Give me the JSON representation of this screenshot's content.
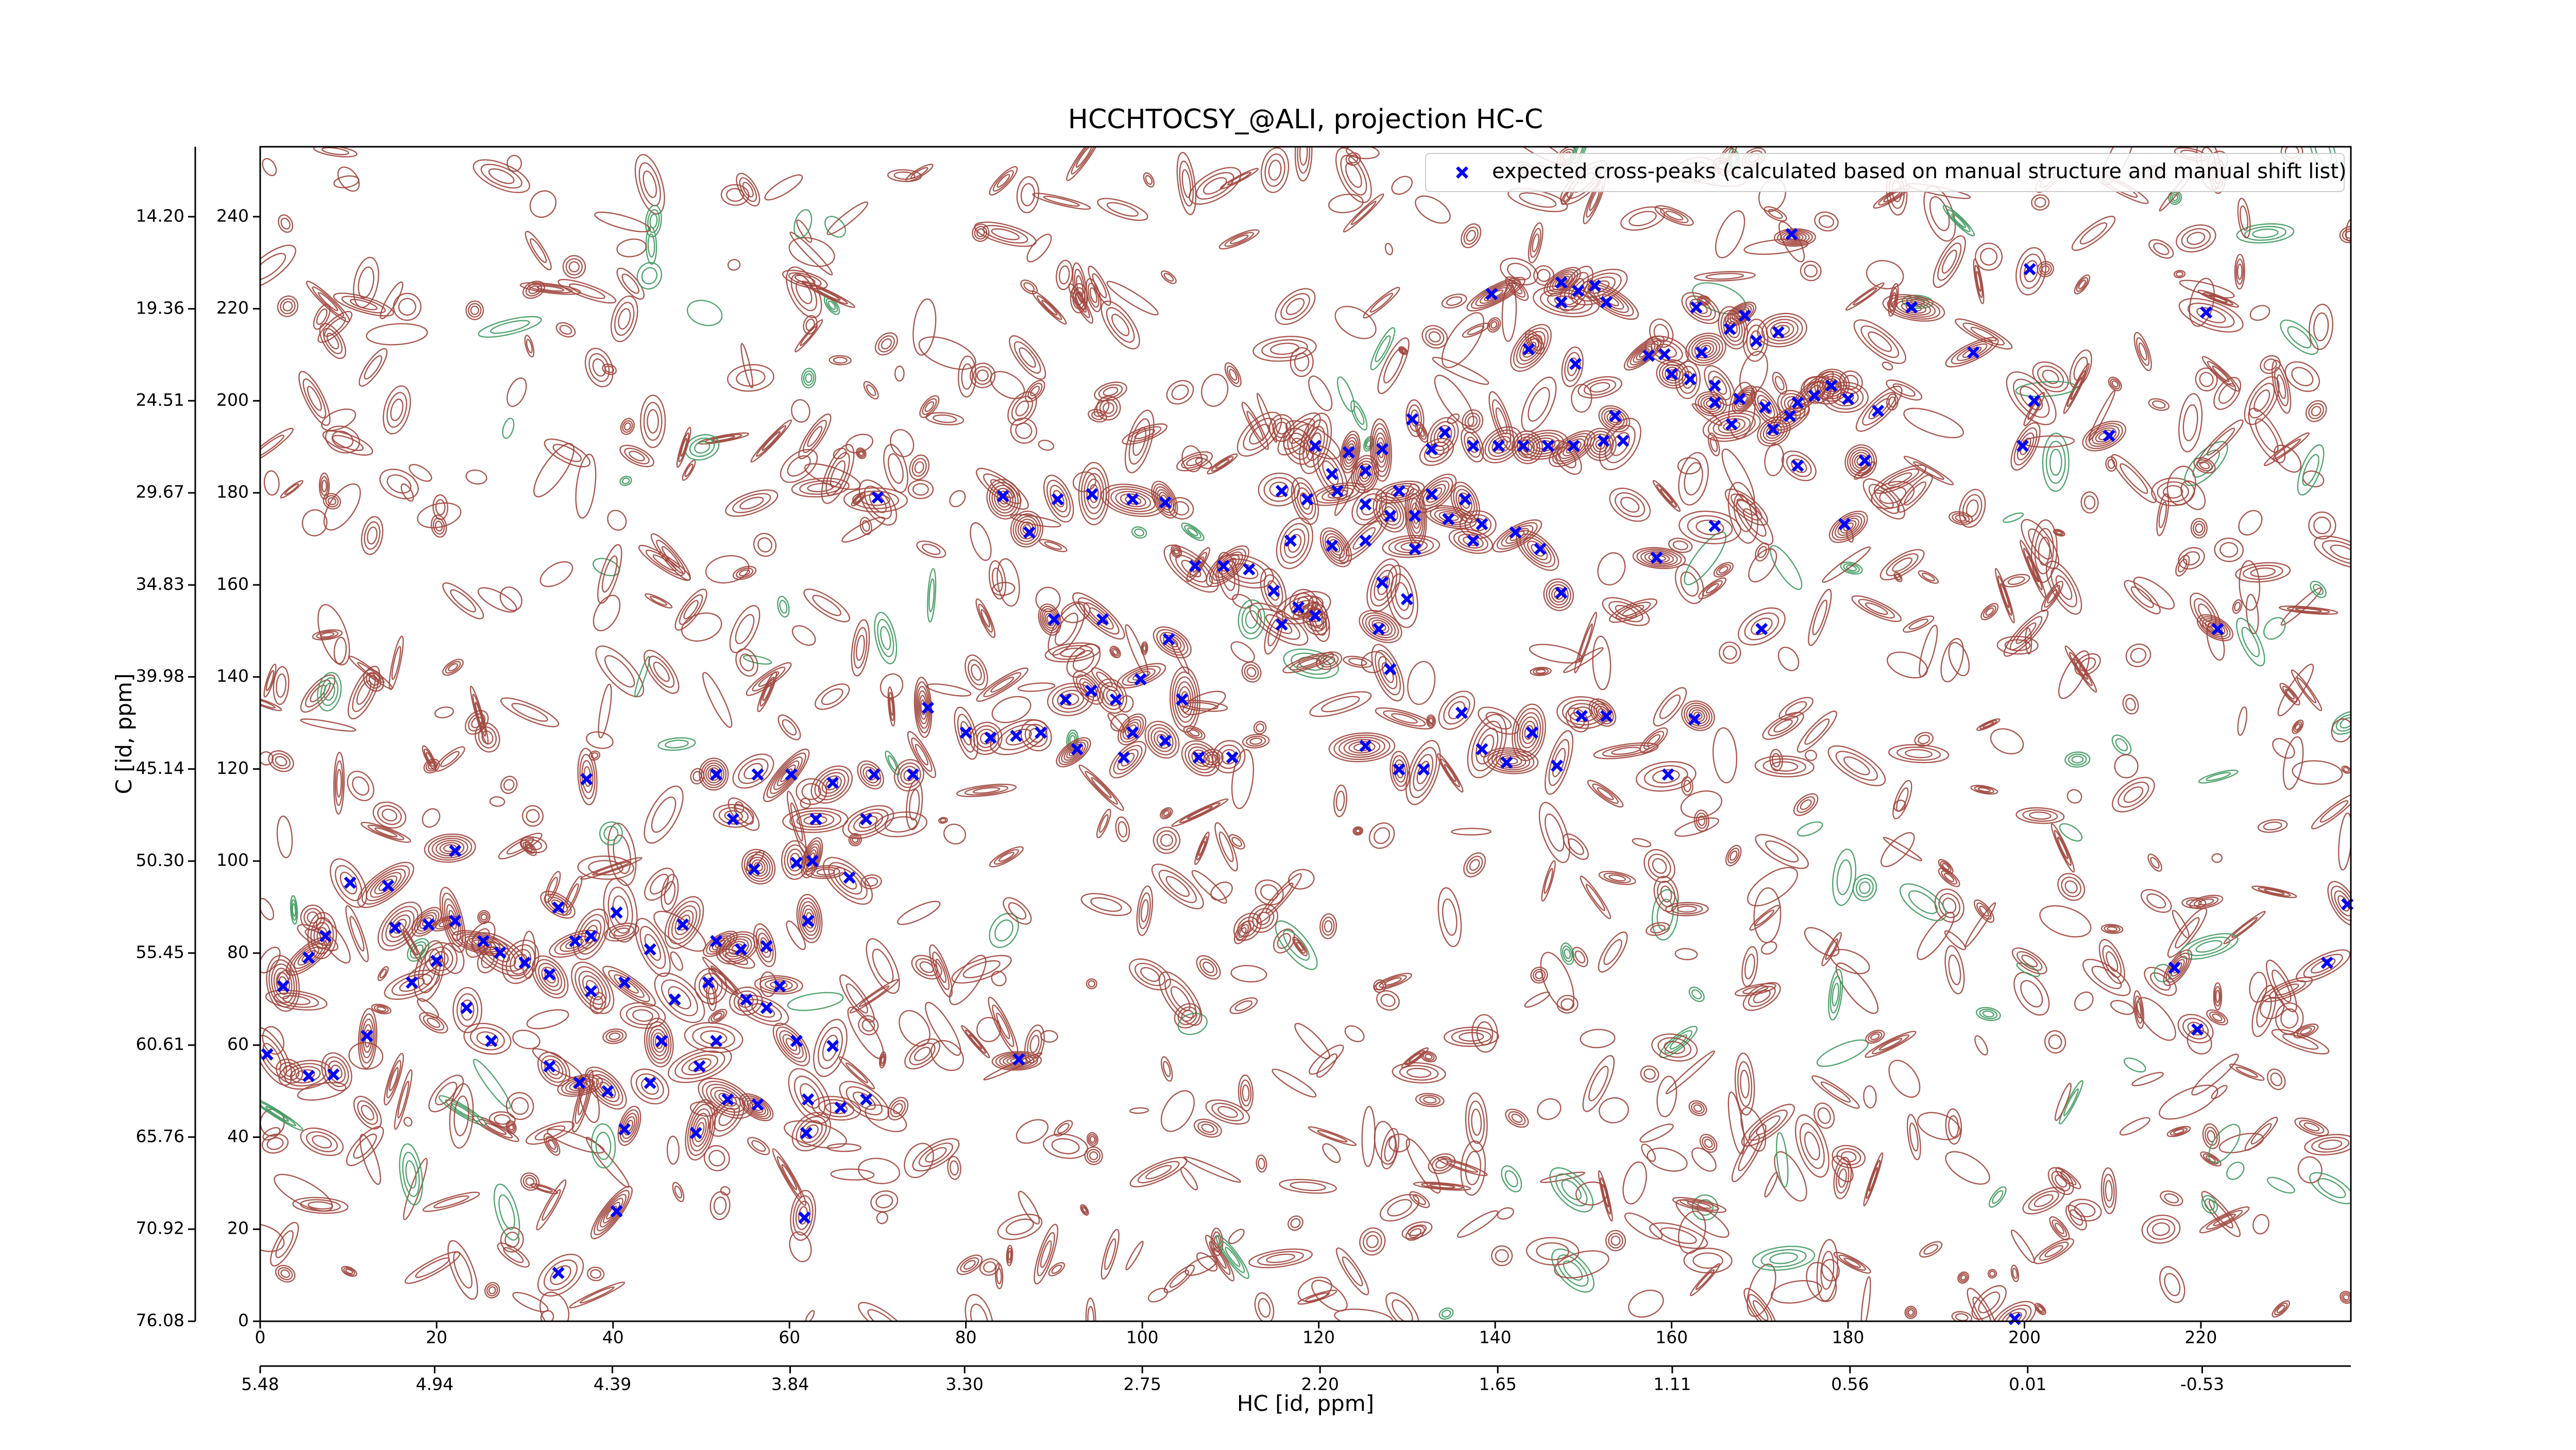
{
  "chart_data": {
    "type": "scatter",
    "title": "HCCHTOCSY_@ALI, projection HC-C",
    "x_label": "HC [id, ppm]",
    "y_label": "C [id, ppm]",
    "xlim": [
      0,
      237
    ],
    "ylim": [
      0,
      255.2
    ],
    "xticks": [
      0,
      20,
      40,
      60,
      80,
      100,
      120,
      140,
      160,
      180,
      200,
      220
    ],
    "yticks": [
      0,
      20,
      40,
      60,
      80,
      100,
      120,
      140,
      160,
      180,
      200,
      220,
      240
    ],
    "x2lim": [
      5.48,
      -0.99
    ],
    "x2ticks": [
      5.48,
      4.94,
      4.39,
      3.84,
      {
        "value": 3.3,
        "label": "3.30"
      },
      2.75,
      {
        "value": 2.2,
        "label": "2.20"
      },
      1.65,
      1.11,
      0.56,
      0.01,
      -0.53
    ],
    "y2lim": [
      76.08,
      10.28
    ],
    "y2ticks": [
      76.08,
      70.92,
      65.76,
      60.61,
      55.45,
      {
        "value": 50.3,
        "label": "50.30"
      },
      45.14,
      39.98,
      34.83,
      29.67,
      24.51,
      19.36,
      {
        "value": 14.2,
        "label": "14.20"
      }
    ],
    "legend": "upper right",
    "series": [
      {
        "name": "expected cross-peaks (calculated based on manual structure and manual shift list)",
        "color": "#0000ff",
        "x": [
          173.6,
          200.6,
          139.6,
          147.5,
          147.5,
          149.4,
          151.3,
          152.6,
          143.8,
          149.1,
          162.8,
          168.3,
          166.6,
          169.6,
          172.1,
          163.4,
          159.2,
          157.4,
          160,
          162.1,
          164.9,
          167.7,
          170.6,
          174.3,
          176.2,
          178.1,
          180,
          183.4,
          187.2,
          194.2,
          201.1,
          199.8,
          209.6,
          220.6,
          174.3,
          181.9,
          164.9,
          166.8,
          171.5,
          173.4,
          153.6,
          152.3,
          130.6,
          134.3,
          137.5,
          140.4,
          143.2,
          146,
          148.9,
          154.5,
          119.6,
          123.4,
          127.2,
          132.8,
          121.5,
          125.3,
          129.1,
          132.8,
          136.6,
          115.8,
          118.7,
          122.1,
          125.3,
          128.1,
          130.9,
          134.7,
          138.5,
          116.8,
          121.5,
          125.3,
          130.9,
          137.5,
          142.3,
          145.1,
          109.2,
          112.1,
          114.9,
          117.7,
          119.6,
          115.8,
          127.2,
          126.8,
          130,
          147.5,
          158.3,
          164.9,
          179.6,
          170.2,
          128.1,
          125.3,
          129.1,
          131.9,
          136.2,
          138.5,
          141.3,
          144.2,
          147,
          149.8,
          152.6,
          162.6,
          159.6,
          221.9,
          217,
          219.6,
          234.3,
          236.6,
          198.9,
          70,
          84.2,
          87.2,
          90.4,
          94.3,
          98.9,
          102.6,
          106,
          90,
          95.5,
          103,
          99.8,
          104.5,
          97,
          94.2,
          91.3,
          80,
          82.8,
          85.7,
          88.5,
          92.6,
          98.9,
          102.6,
          97.9,
          106.4,
          110.2,
          75.7,
          51.7,
          56.4,
          60.2,
          64.9,
          69.6,
          74,
          37,
          53.6,
          63,
          68.7,
          56,
          60.8,
          66.8,
          62.6,
          22.1,
          10.2,
          14.5,
          15.3,
          19.1,
          22.1,
          25.3,
          27.2,
          30,
          33.8,
          35.7,
          37.5,
          40.4,
          44.2,
          47.9,
          51.7,
          54.5,
          57.4,
          58.9,
          62.1,
          7.4,
          5.5,
          2.6,
          20,
          17.2,
          23.4,
          26.2,
          32.8,
          37.5,
          41.3,
          47,
          50.8,
          55.1,
          57.4,
          60.8,
          64.9,
          51.7,
          45.5,
          32.8,
          36.2,
          39.4,
          44.2,
          49.8,
          53,
          56.4,
          62.1,
          65.8,
          68.7,
          8.3,
          5.5,
          0.8,
          12.1,
          41.3,
          49.4,
          61.9,
          40.4,
          61.7,
          33.8,
          86
        ],
        "values": [
          236.2,
          228.6,
          223.2,
          225.7,
          221.4,
          223.9,
          225,
          221.4,
          211.2,
          208,
          220.3,
          218.5,
          215.6,
          213,
          214.9,
          210.5,
          210.1,
          209.8,
          205.8,
          204.7,
          203.3,
          200.4,
          198.6,
          199.6,
          201.1,
          203.3,
          200.4,
          197.8,
          220.3,
          210.5,
          200,
          190.2,
          192.4,
          219.2,
          185.9,
          187,
          199.6,
          194.9,
          193.8,
          196.7,
          196.7,
          191.3,
          196,
          193.1,
          190.2,
          190.2,
          190.2,
          190.2,
          190.2,
          191.3,
          190.2,
          188.8,
          189.5,
          189.5,
          184.1,
          184.8,
          180.4,
          179.7,
          178.6,
          180.4,
          178.6,
          180.4,
          177.5,
          175,
          175,
          174.3,
          173.2,
          169.6,
          168.5,
          169.6,
          167.8,
          169.6,
          171.4,
          167.8,
          164.1,
          163.4,
          158.7,
          155.1,
          153.3,
          151.4,
          160.5,
          150.4,
          156.9,
          158.3,
          165.9,
          172.8,
          173.2,
          150.4,
          141.7,
          125,
          119.9,
          119.9,
          132.2,
          124.3,
          121.4,
          127.9,
          120.7,
          131.5,
          131.5,
          130.8,
          118.8,
          150.4,
          76.8,
          63.4,
          77.9,
          90.6,
          0.5,
          179,
          179.3,
          171.4,
          178.6,
          179.7,
          178.6,
          177.9,
          164.1,
          152.5,
          152.5,
          148.2,
          139.5,
          135.1,
          135.1,
          137,
          135.1,
          127.9,
          126.8,
          127.2,
          127.9,
          124.3,
          127.9,
          126.1,
          122.5,
          122.5,
          122.5,
          133.3,
          118.8,
          118.8,
          118.8,
          117,
          118.8,
          118.8,
          117.8,
          109.1,
          109.1,
          109.1,
          98.2,
          99.6,
          96.4,
          100,
          102.2,
          95.3,
          94.6,
          85.5,
          86.2,
          87,
          82.6,
          80.1,
          77.9,
          89.9,
          82.6,
          83.7,
          88.8,
          80.8,
          86.2,
          82.6,
          80.8,
          81.5,
          72.8,
          87,
          83.7,
          79,
          72.8,
          78.3,
          73.6,
          68.1,
          60.9,
          75.4,
          71.7,
          73.6,
          69.9,
          73.6,
          69.9,
          68.1,
          60.9,
          59.8,
          60.9,
          60.9,
          55.4,
          51.8,
          50,
          51.8,
          55.4,
          48.2,
          47.1,
          48.2,
          46.4,
          48.2,
          53.6,
          53.3,
          58,
          62,
          41.7,
          40.9,
          40.9,
          23.9,
          22.5,
          10.5,
          56.9
        ]
      }
    ]
  }
}
